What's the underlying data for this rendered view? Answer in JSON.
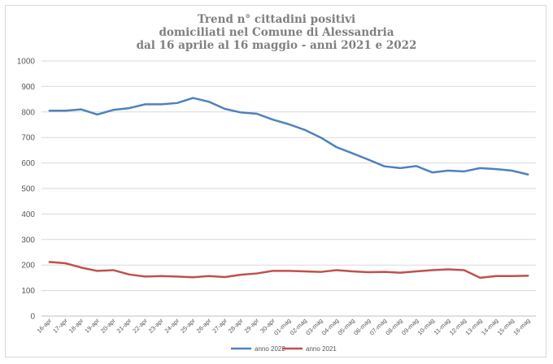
{
  "chart_data": {
    "type": "line",
    "title_lines": [
      "Trend n° cittadini positivi",
      "domiciliati nel Comune di Alessandria",
      "dal 16 aprile al 16 maggio - anni 2021 e 2022"
    ],
    "xlabel": "",
    "ylabel": "",
    "ylim": [
      0,
      1000
    ],
    "yticks": [
      "0",
      "100",
      "200",
      "300",
      "400",
      "500",
      "600",
      "700",
      "800",
      "900",
      "1000"
    ],
    "grid": true,
    "legend_position": "bottom",
    "categories": [
      "16-apr",
      "17-apr",
      "18-apr",
      "19-apr",
      "20-apr",
      "21-apr",
      "22-apr",
      "23-apr",
      "24-apr",
      "25-apr",
      "26-apr",
      "27-apr",
      "28-apr",
      "29-apr",
      "30-apr",
      "01-mag",
      "02-mag",
      "03-mag",
      "04-mag",
      "05-mag",
      "06-mag",
      "07-mag",
      "08-mag",
      "09-mag",
      "10-mag",
      "11-mag",
      "12-mag",
      "13-mag",
      "14-mag",
      "15-mag",
      "16-mag"
    ],
    "series": [
      {
        "name": "anno 2022",
        "color": "#4f81bd",
        "values": [
          805,
          805,
          810,
          790,
          808,
          815,
          830,
          830,
          835,
          855,
          840,
          812,
          798,
          793,
          770,
          752,
          730,
          700,
          662,
          638,
          613,
          587,
          580,
          588,
          563,
          570,
          567,
          580,
          576,
          570,
          555
        ]
      },
      {
        "name": "anno 2021",
        "color": "#c0504d",
        "values": [
          212,
          207,
          190,
          177,
          180,
          163,
          155,
          157,
          155,
          152,
          157,
          153,
          162,
          167,
          177,
          177,
          175,
          173,
          180,
          175,
          172,
          173,
          170,
          175,
          180,
          183,
          180,
          150,
          157,
          157,
          158
        ]
      }
    ]
  }
}
